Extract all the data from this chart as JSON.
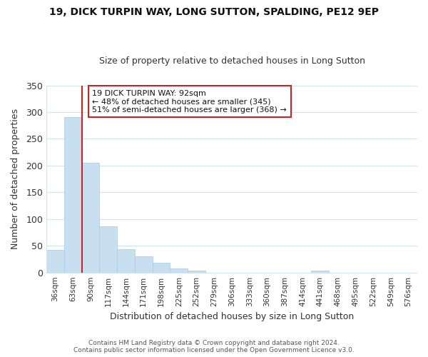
{
  "title": "19, DICK TURPIN WAY, LONG SUTTON, SPALDING, PE12 9EP",
  "subtitle": "Size of property relative to detached houses in Long Sutton",
  "xlabel": "Distribution of detached houses by size in Long Sutton",
  "ylabel": "Number of detached properties",
  "bar_color": "#c8dff0",
  "bar_edge_color": "#a8c8e8",
  "highlight_color": "#cc2222",
  "categories": [
    "36sqm",
    "63sqm",
    "90sqm",
    "117sqm",
    "144sqm",
    "171sqm",
    "198sqm",
    "225sqm",
    "252sqm",
    "279sqm",
    "306sqm",
    "333sqm",
    "360sqm",
    "387sqm",
    "414sqm",
    "441sqm",
    "468sqm",
    "495sqm",
    "522sqm",
    "549sqm",
    "576sqm"
  ],
  "values": [
    42,
    291,
    205,
    87,
    44,
    30,
    18,
    8,
    4,
    0,
    0,
    0,
    0,
    0,
    0,
    3,
    0,
    0,
    0,
    0,
    0
  ],
  "highlight_line_index": 2,
  "annotation_text": "19 DICK TURPIN WAY: 92sqm\n← 48% of detached houses are smaller (345)\n51% of semi-detached houses are larger (368) →",
  "annotation_box_color": "#ffffff",
  "annotation_border_color": "#cc2222",
  "ylim": [
    0,
    350
  ],
  "yticks": [
    0,
    50,
    100,
    150,
    200,
    250,
    300,
    350
  ],
  "footer1": "Contains HM Land Registry data © Crown copyright and database right 2024.",
  "footer2": "Contains public sector information licensed under the Open Government Licence v3.0.",
  "fig_bg": "#ffffff",
  "grid_color": "#d0e4f0"
}
